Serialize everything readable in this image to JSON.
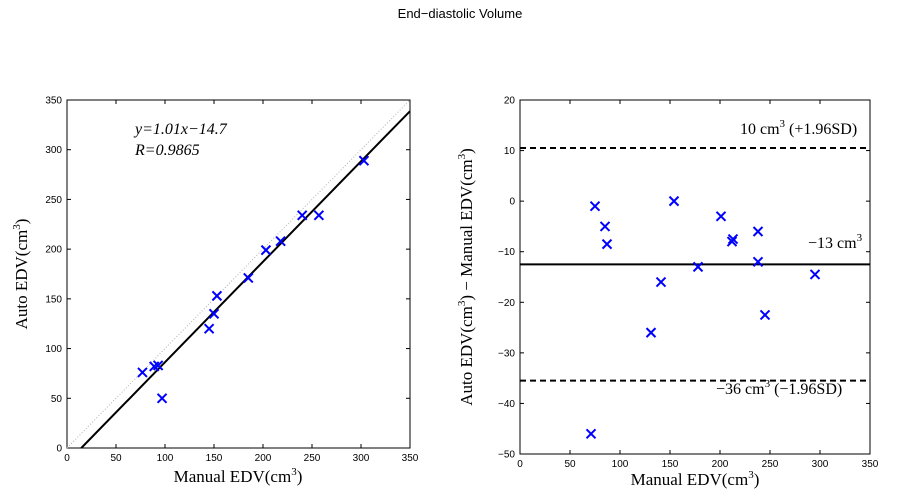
{
  "figure_title": "End−diastolic Volume",
  "chart_data": [
    {
      "type": "scatter",
      "title": "",
      "xlabel": "Manual EDV(cm",
      "xlabel_sup": "3",
      "xlabel_end": ")",
      "ylabel": "Auto EDV(cm",
      "ylabel_sup": "3",
      "ylabel_end": ")",
      "xlim": [
        0,
        350
      ],
      "ylim": [
        0,
        350
      ],
      "xticks": [
        0,
        50,
        100,
        150,
        200,
        250,
        300,
        350
      ],
      "yticks": [
        0,
        50,
        100,
        150,
        200,
        250,
        300,
        350
      ],
      "grid": false,
      "marker_color": "#0000ff",
      "points": [
        {
          "x": 77,
          "y": 76
        },
        {
          "x": 89,
          "y": 82
        },
        {
          "x": 93,
          "y": 83
        },
        {
          "x": 97,
          "y": 50
        },
        {
          "x": 145,
          "y": 120
        },
        {
          "x": 150,
          "y": 135
        },
        {
          "x": 153,
          "y": 153
        },
        {
          "x": 185,
          "y": 171
        },
        {
          "x": 203,
          "y": 199
        },
        {
          "x": 218,
          "y": 208
        },
        {
          "x": 240,
          "y": 234
        },
        {
          "x": 257,
          "y": 234
        },
        {
          "x": 303,
          "y": 289
        }
      ],
      "fit_line": {
        "slope": 1.01,
        "intercept": -14.7
      },
      "identity_line": true,
      "annotation_line1": "y=1.01x−14.7",
      "annotation_line2": "R=0.9865"
    },
    {
      "type": "scatter",
      "title": "",
      "xlabel": "Manual EDV(cm",
      "xlabel_sup": "3",
      "xlabel_end": ")",
      "ylabel": "Auto EDV(cm",
      "ylabel_sup": "3",
      "ylabel_mid": ") − Manual EDV(cm",
      "ylabel_sup2": "3",
      "ylabel_end": ")",
      "xlim": [
        0,
        350
      ],
      "ylim": [
        -50,
        20
      ],
      "xticks": [
        0,
        50,
        100,
        150,
        200,
        250,
        300,
        350
      ],
      "yticks": [
        -50,
        -40,
        -30,
        -20,
        -10,
        0,
        10,
        20
      ],
      "grid": false,
      "marker_color": "#0000ff",
      "points": [
        {
          "x": 71,
          "y": -46
        },
        {
          "x": 75,
          "y": -1
        },
        {
          "x": 85,
          "y": -5
        },
        {
          "x": 87,
          "y": -8.5
        },
        {
          "x": 131,
          "y": -26
        },
        {
          "x": 141,
          "y": -16
        },
        {
          "x": 154,
          "y": 0
        },
        {
          "x": 178,
          "y": -13
        },
        {
          "x": 201,
          "y": -3
        },
        {
          "x": 212,
          "y": -8
        },
        {
          "x": 213,
          "y": -7.5
        },
        {
          "x": 238,
          "y": -12
        },
        {
          "x": 238,
          "y": -6
        },
        {
          "x": 245,
          "y": -22.5
        },
        {
          "x": 295,
          "y": -14.5
        }
      ],
      "mean_line": -12.5,
      "upper_limit": 10.5,
      "lower_limit": -35.5,
      "mean_label": "−13 cm",
      "mean_label_sup": "3",
      "upper_label": "10 cm",
      "upper_label_sup": "3",
      "upper_label_end": " (+1.96SD)",
      "lower_label": "−36 cm",
      "lower_label_sup": "3",
      "lower_label_end": " (−1.96SD)"
    }
  ]
}
